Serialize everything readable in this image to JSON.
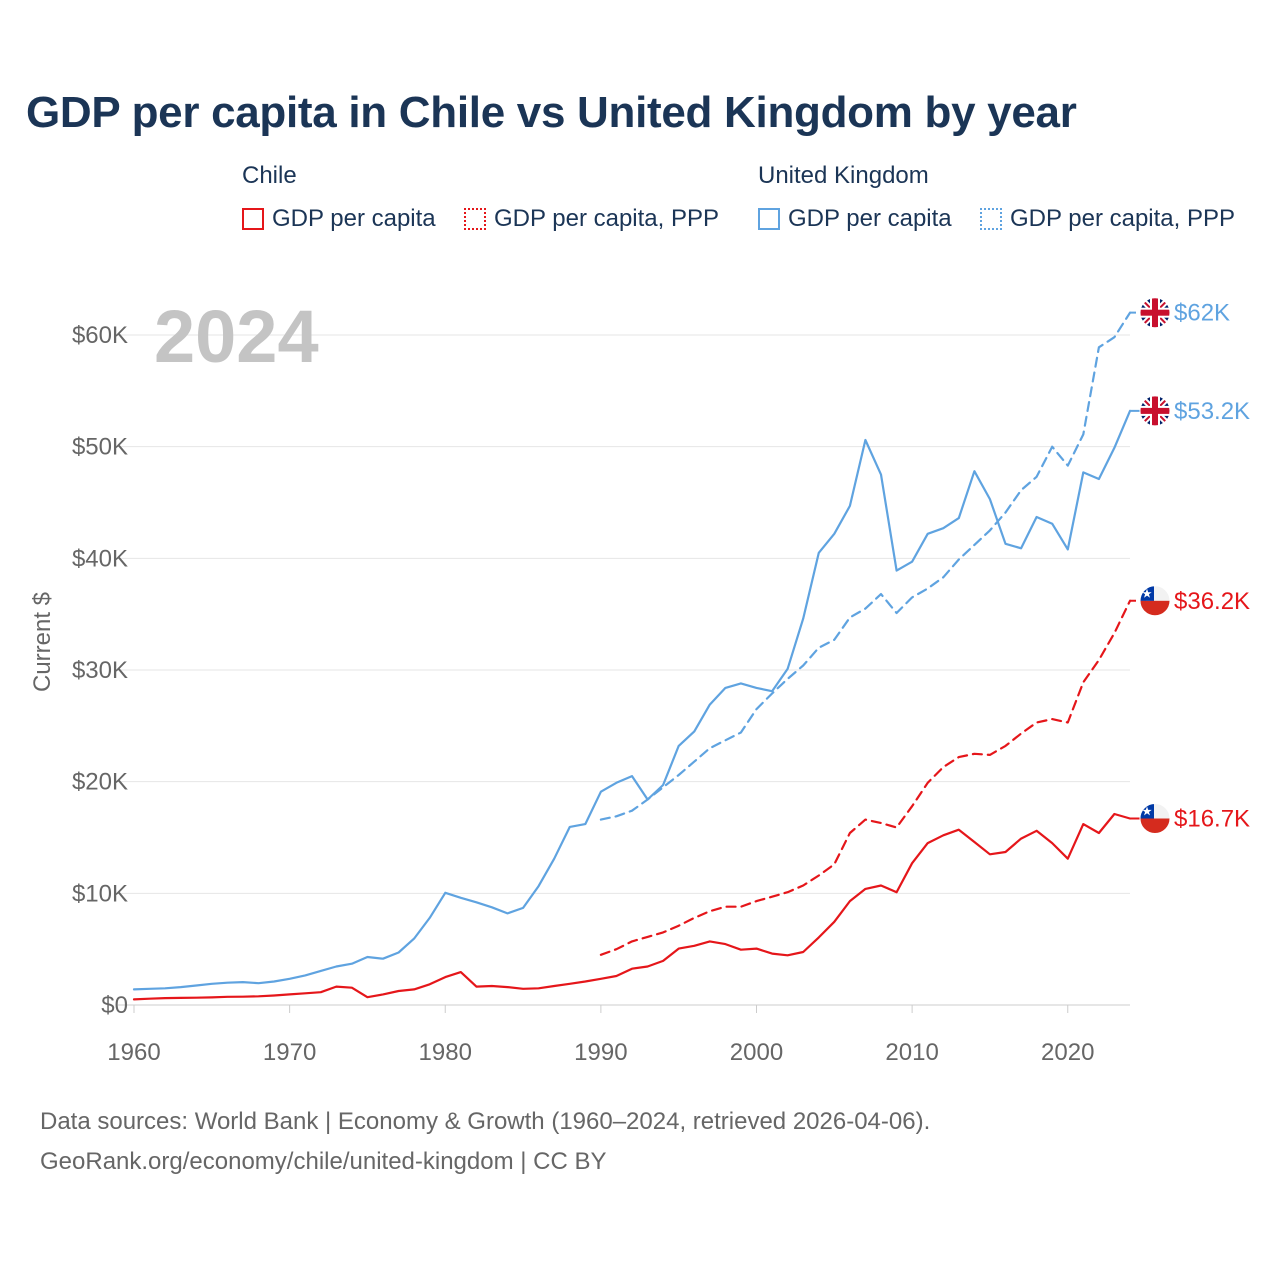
{
  "title": "GDP per capita in Chile vs United Kingdom by year",
  "legend": {
    "chile_title": "Chile",
    "uk_title": "United Kingdom",
    "chile_gdp": "GDP per capita",
    "chile_ppp": "GDP per capita, PPP",
    "uk_gdp": "GDP per capita",
    "uk_ppp": "GDP per capita, PPP"
  },
  "year_watermark": "2024",
  "footer": {
    "line1": "Data sources: World Bank | Economy & Growth (1960–2024, retrieved 2026-04-06).",
    "line2": "GeoRank.org/economy/chile/united-kingdom | CC BY"
  },
  "colors": {
    "chile": "#e5161a",
    "uk": "#5fa3e0",
    "grid": "#e6e6e6",
    "axis_text": "#666666"
  },
  "chart_data": {
    "type": "line",
    "title": "GDP per capita in Chile vs United Kingdom by year",
    "xlabel": "",
    "ylabel": "Current $",
    "xlim": [
      1960,
      2024
    ],
    "ylim": [
      0,
      60000
    ],
    "x_ticks": [
      1960,
      1970,
      1980,
      1990,
      2000,
      2010,
      2020
    ],
    "x_tick_labels": [
      "1960",
      "1970",
      "1980",
      "1990",
      "2000",
      "2010",
      "2020"
    ],
    "y_ticks": [
      0,
      10000,
      20000,
      30000,
      40000,
      50000,
      60000
    ],
    "y_tick_labels": [
      "$0",
      "$10K",
      "$20K",
      "$30K",
      "$40K",
      "$50K",
      "$60K"
    ],
    "grid": true,
    "series": [
      {
        "name": "United Kingdom GDP per capita",
        "country": "uk",
        "dashed": false,
        "end_label": "$53.2K",
        "x": [
          1960,
          1961,
          1962,
          1963,
          1964,
          1965,
          1966,
          1967,
          1968,
          1969,
          1970,
          1971,
          1972,
          1973,
          1974,
          1975,
          1976,
          1977,
          1978,
          1979,
          1980,
          1981,
          1982,
          1983,
          1984,
          1985,
          1986,
          1987,
          1988,
          1989,
          1990,
          1991,
          1992,
          1993,
          1994,
          1995,
          1996,
          1997,
          1998,
          1999,
          2000,
          2001,
          2002,
          2003,
          2004,
          2005,
          2006,
          2007,
          2008,
          2009,
          2010,
          2011,
          2012,
          2013,
          2014,
          2015,
          2016,
          2017,
          2018,
          2019,
          2020,
          2021,
          2022,
          2023,
          2024
        ],
        "y": [
          1400,
          1450,
          1500,
          1600,
          1750,
          1900,
          2000,
          2050,
          1950,
          2100,
          2350,
          2650,
          3050,
          3450,
          3700,
          4300,
          4150,
          4700,
          5950,
          7800,
          10050,
          9600,
          9200,
          8750,
          8200,
          8700,
          10650,
          13100,
          15950,
          16200,
          19100,
          19900,
          20500,
          18400,
          19700,
          23200,
          24500,
          26900,
          28400,
          28800,
          28400,
          28100,
          30100,
          34600,
          40500,
          42200,
          44700,
          50600,
          47500,
          38900,
          39700,
          42200,
          42700,
          43600,
          47800,
          45300,
          41300,
          40900,
          43700,
          43100,
          40800,
          47700,
          47100,
          49900,
          53200
        ]
      },
      {
        "name": "United Kingdom GDP per capita, PPP",
        "country": "uk",
        "dashed": true,
        "end_label": "$62K",
        "x": [
          1990,
          1991,
          1992,
          1993,
          1994,
          1995,
          1996,
          1997,
          1998,
          1999,
          2000,
          2001,
          2002,
          2003,
          2004,
          2005,
          2006,
          2007,
          2008,
          2009,
          2010,
          2011,
          2012,
          2013,
          2014,
          2015,
          2016,
          2017,
          2018,
          2019,
          2020,
          2021,
          2022,
          2023,
          2024
        ],
        "y": [
          16600,
          16900,
          17400,
          18400,
          19500,
          20600,
          21800,
          23000,
          23700,
          24400,
          26500,
          27900,
          29200,
          30400,
          32000,
          32700,
          34700,
          35500,
          36800,
          35100,
          36500,
          37300,
          38300,
          39900,
          41200,
          42500,
          44100,
          46100,
          47300,
          50000,
          48300,
          51100,
          58900,
          59800,
          62000
        ]
      },
      {
        "name": "Chile GDP per capita, PPP",
        "country": "chile",
        "dashed": true,
        "end_label": "$36.2K",
        "x": [
          1990,
          1991,
          1992,
          1993,
          1994,
          1995,
          1996,
          1997,
          1998,
          1999,
          2000,
          2001,
          2002,
          2003,
          2004,
          2005,
          2006,
          2007,
          2008,
          2009,
          2010,
          2011,
          2012,
          2013,
          2014,
          2015,
          2016,
          2017,
          2018,
          2019,
          2020,
          2021,
          2022,
          2023,
          2024
        ],
        "y": [
          4500,
          5000,
          5700,
          6100,
          6500,
          7100,
          7800,
          8400,
          8800,
          8800,
          9300,
          9700,
          10100,
          10700,
          11600,
          12600,
          15400,
          16600,
          16300,
          15900,
          17800,
          19900,
          21300,
          22200,
          22500,
          22400,
          23200,
          24300,
          25300,
          25600,
          25300,
          28900,
          30900,
          33300,
          36200
        ]
      },
      {
        "name": "Chile GDP per capita",
        "country": "chile",
        "dashed": false,
        "end_label": "$16.7K",
        "x": [
          1960,
          1961,
          1962,
          1963,
          1964,
          1965,
          1966,
          1967,
          1968,
          1969,
          1970,
          1971,
          1972,
          1973,
          1974,
          1975,
          1976,
          1977,
          1978,
          1979,
          1980,
          1981,
          1982,
          1983,
          1984,
          1985,
          1986,
          1987,
          1988,
          1989,
          1990,
          1991,
          1992,
          1993,
          1994,
          1995,
          1996,
          1997,
          1998,
          1999,
          2000,
          2001,
          2002,
          2003,
          2004,
          2005,
          2006,
          2007,
          2008,
          2009,
          2010,
          2011,
          2012,
          2013,
          2014,
          2015,
          2016,
          2017,
          2018,
          2019,
          2020,
          2021,
          2022,
          2023,
          2024
        ],
        "y": [
          500,
          560,
          620,
          640,
          650,
          680,
          730,
          740,
          780,
          850,
          950,
          1050,
          1150,
          1650,
          1550,
          700,
          950,
          1250,
          1400,
          1850,
          2500,
          2950,
          1650,
          1700,
          1600,
          1450,
          1500,
          1700,
          1900,
          2100,
          2350,
          2600,
          3250,
          3450,
          3950,
          5050,
          5300,
          5700,
          5450,
          4950,
          5050,
          4600,
          4450,
          4750,
          6050,
          7450,
          9300,
          10400,
          10700,
          10100,
          12700,
          14500,
          15200,
          15700,
          14600,
          13500,
          13700,
          14900,
          15600,
          14500,
          13100,
          16200,
          15400,
          17100,
          16700
        ]
      }
    ]
  }
}
